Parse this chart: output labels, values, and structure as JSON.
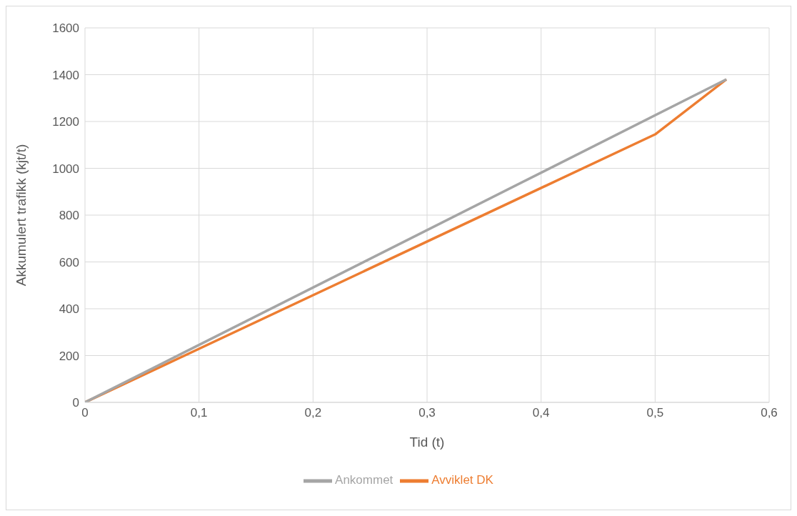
{
  "chart_data": {
    "type": "line",
    "xlabel": "Tid (t)",
    "ylabel": "Akkumulert trafikk (kjt/t)",
    "series": [
      {
        "name": "Avviklet DK",
        "color": "#ed7d31",
        "x": [
          0,
          0.5,
          0.5625
        ],
        "values": [
          0,
          1145,
          1380
        ]
      },
      {
        "name": "Ankommet",
        "color": "#a5a5a5",
        "x": [
          0,
          0.5625
        ],
        "values": [
          0,
          1380
        ]
      }
    ],
    "xlim": [
      0,
      0.6
    ],
    "xticks": [
      0,
      {
        "value": 0.1,
        "label": "0,1"
      },
      {
        "value": 0.2,
        "label": "0,2"
      },
      {
        "value": 0.3,
        "label": "0,3"
      },
      {
        "value": 0.4,
        "label": "0,4"
      },
      {
        "value": 0.5,
        "label": "0,5"
      },
      {
        "value": 0.6,
        "label": "0,6"
      }
    ],
    "ylim": [
      0,
      1600
    ],
    "yticks": [
      0,
      200,
      400,
      600,
      800,
      1000,
      1200,
      1400,
      1600
    ],
    "grid": true,
    "legend": "bottom",
    "marker": "none",
    "line_style": "solid"
  }
}
